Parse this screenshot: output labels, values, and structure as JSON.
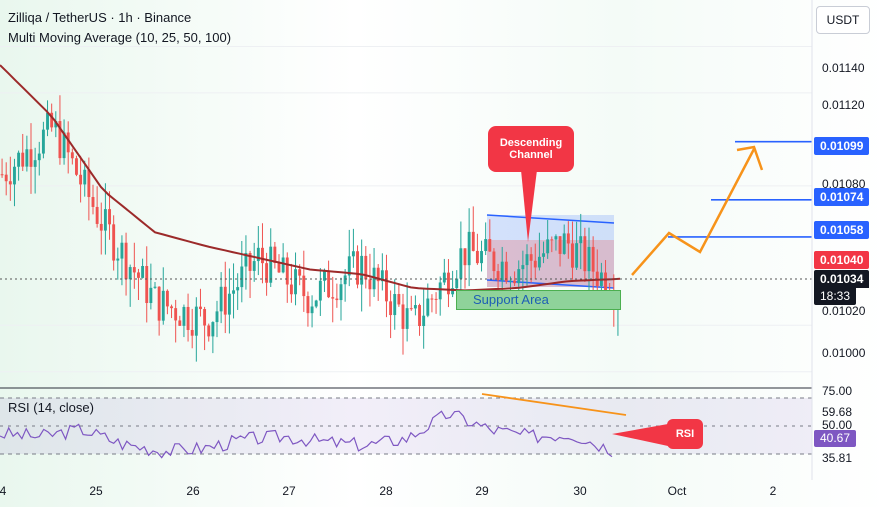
{
  "legend": {
    "title": "Zilliqa / TetherUS · 1h · Binance",
    "ma_label": "Multi Moving Average (10, 25, 50, 100)"
  },
  "currency": "USDT",
  "price_axis": {
    "ticks": [
      "0.01140",
      "0.01120",
      "0.01080",
      "0.01020",
      "0.01000"
    ],
    "tick_values": [
      0.0114,
      0.0112,
      0.0108,
      0.0102,
      0.01
    ]
  },
  "levels": [
    {
      "label": "0.01099",
      "value": 0.01099
    },
    {
      "label": "0.01074",
      "value": 0.01074
    },
    {
      "label": "0.01058",
      "value": 0.01058
    }
  ],
  "current": {
    "ma_value": "0.01040",
    "price": "0.01034",
    "countdown": "18:33"
  },
  "annotations": {
    "channel": "Descending Channel",
    "support": "Support Area",
    "rsi": "RSI"
  },
  "rsi": {
    "legend": "RSI (14, close)",
    "ticks": [
      "75.00",
      "59.68",
      "50.00",
      "35.81"
    ],
    "value": "40.67"
  },
  "dates": [
    "4",
    "25",
    "26",
    "27",
    "28",
    "29",
    "30",
    "Oct",
    "2"
  ],
  "colors": {
    "up": "#26a69a",
    "down": "#ef5350",
    "ma": "#9c2a2a",
    "level_line": "#2962ff",
    "projection": "#f7931a",
    "rsi_line": "#7e57c2",
    "callout": "#f23645"
  },
  "chart_data": {
    "type": "line",
    "title": "Zilliqa / TetherUS · 1h · Binance",
    "xlabel": "",
    "ylabel": "",
    "ylim": [
      0.00993,
      0.0116
    ],
    "x": [
      "24",
      "25",
      "25",
      "26",
      "26",
      "27",
      "27",
      "28",
      "28",
      "29",
      "29",
      "30",
      "30"
    ],
    "series": [
      {
        "name": "",
        "values": [
          0.01085,
          0.01105,
          0.01062,
          0.0103,
          0.01022,
          0.01049,
          0.01032,
          0.01046,
          0.0102,
          0.01052,
          0.01045,
          0.01056,
          0.01034
        ]
      }
    ],
    "ma_series": {
      "name": "Multi Moving Average (10, 25, 50, 100)",
      "values": [
        0.01132,
        0.0111,
        0.01078,
        0.0106,
        0.01054,
        0.01049,
        0.01044,
        0.01042,
        0.01036,
        0.01035,
        0.01036,
        0.01039,
        0.0104
      ]
    },
    "grid": false,
    "legend": "top-left"
  }
}
